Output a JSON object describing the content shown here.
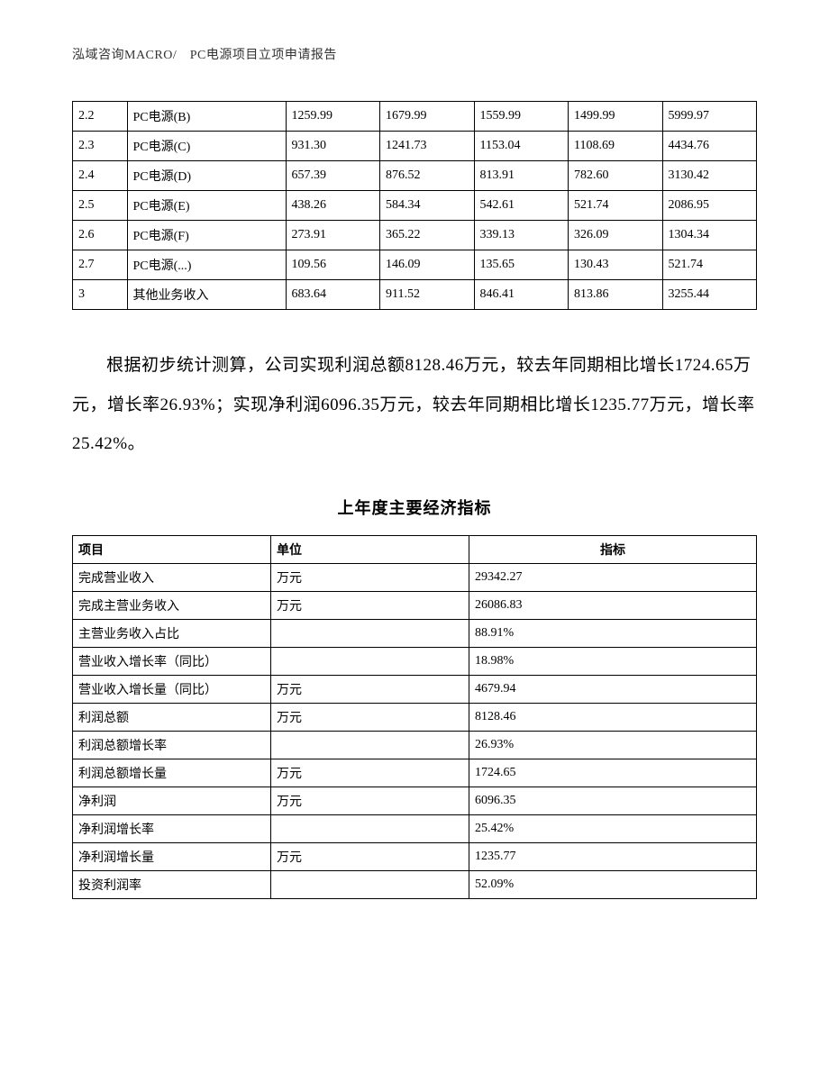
{
  "header": {
    "text": "泓域咨询MACRO/　PC电源项目立项申请报告"
  },
  "table1": {
    "rows": [
      {
        "idx": "2.2",
        "name": "PC电源(B)",
        "c1": "1259.99",
        "c2": "1679.99",
        "c3": "1559.99",
        "c4": "1499.99",
        "total": "5999.97"
      },
      {
        "idx": "2.3",
        "name": "PC电源(C)",
        "c1": "931.30",
        "c2": "1241.73",
        "c3": "1153.04",
        "c4": "1108.69",
        "total": "4434.76"
      },
      {
        "idx": "2.4",
        "name": "PC电源(D)",
        "c1": "657.39",
        "c2": "876.52",
        "c3": "813.91",
        "c4": "782.60",
        "total": "3130.42"
      },
      {
        "idx": "2.5",
        "name": "PC电源(E)",
        "c1": "438.26",
        "c2": "584.34",
        "c3": "542.61",
        "c4": "521.74",
        "total": "2086.95"
      },
      {
        "idx": "2.6",
        "name": "PC电源(F)",
        "c1": "273.91",
        "c2": "365.22",
        "c3": "339.13",
        "c4": "326.09",
        "total": "1304.34"
      },
      {
        "idx": "2.7",
        "name": "PC电源(...)",
        "c1": "109.56",
        "c2": "146.09",
        "c3": "135.65",
        "c4": "130.43",
        "total": "521.74"
      },
      {
        "idx": "3",
        "name": "其他业务收入",
        "c1": "683.64",
        "c2": "911.52",
        "c3": "846.41",
        "c4": "813.86",
        "total": "3255.44"
      }
    ]
  },
  "paragraph": {
    "text": "根据初步统计测算，公司实现利润总额8128.46万元，较去年同期相比增长1724.65万元，增长率26.93%；实现净利润6096.35万元，较去年同期相比增长1235.77万元，增长率25.42%。"
  },
  "table2": {
    "title": "上年度主要经济指标",
    "headers": {
      "item": "项目",
      "unit": "单位",
      "metric": "指标"
    },
    "rows": [
      {
        "item": "完成营业收入",
        "unit": "万元",
        "metric": "29342.27"
      },
      {
        "item": "完成主营业务收入",
        "unit": "万元",
        "metric": "26086.83"
      },
      {
        "item": "主营业务收入占比",
        "unit": "",
        "metric": "88.91%"
      },
      {
        "item": "营业收入增长率（同比）",
        "unit": "",
        "metric": "18.98%"
      },
      {
        "item": "营业收入增长量（同比）",
        "unit": "万元",
        "metric": "4679.94"
      },
      {
        "item": "利润总额",
        "unit": "万元",
        "metric": "8128.46"
      },
      {
        "item": "利润总额增长率",
        "unit": "",
        "metric": "26.93%"
      },
      {
        "item": "利润总额增长量",
        "unit": "万元",
        "metric": "1724.65"
      },
      {
        "item": "净利润",
        "unit": "万元",
        "metric": "6096.35"
      },
      {
        "item": "净利润增长率",
        "unit": "",
        "metric": "25.42%"
      },
      {
        "item": "净利润增长量",
        "unit": "万元",
        "metric": "1235.77"
      },
      {
        "item": "投资利润率",
        "unit": "",
        "metric": "52.09%"
      }
    ]
  }
}
